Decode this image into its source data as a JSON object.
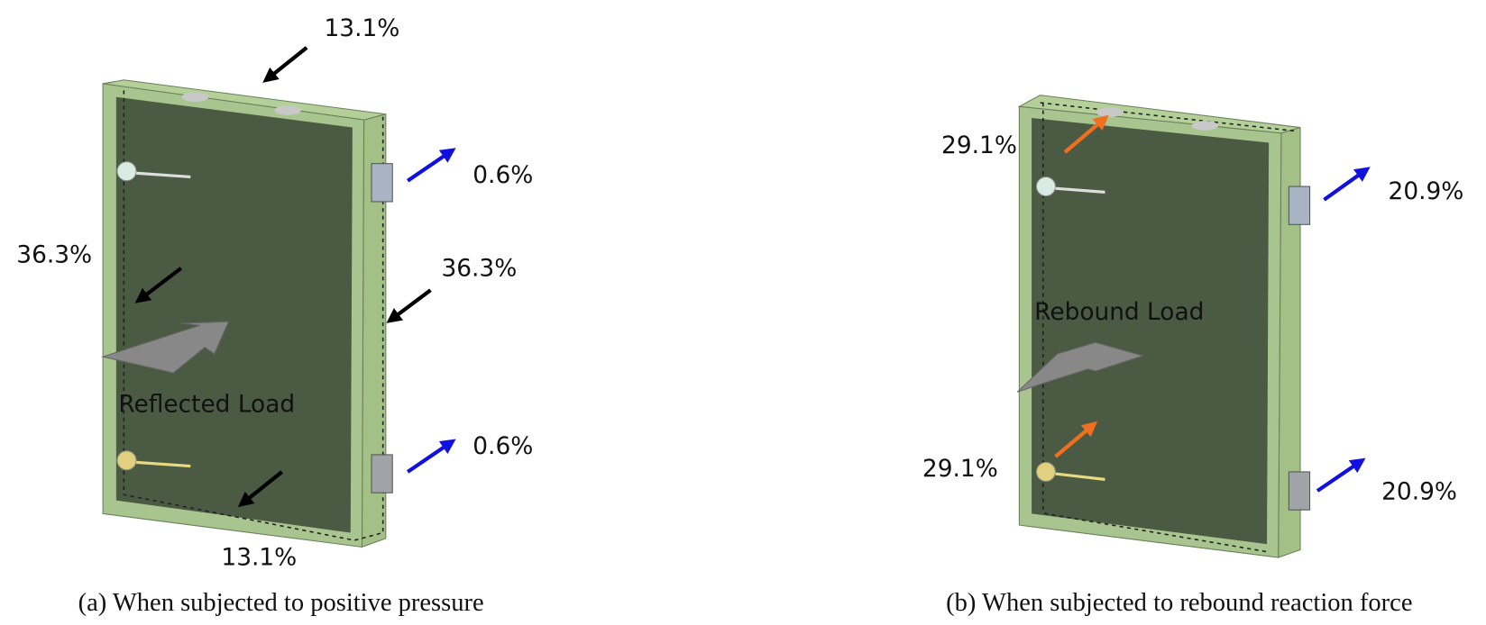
{
  "panels": [
    {
      "caption": "(a) When subjected to positive pressure",
      "load_label": "Reflected Load",
      "labels": [
        "13.1%",
        "0.6%",
        "36.3%",
        "36.3%",
        "0.6%",
        "13.1%"
      ]
    },
    {
      "caption": "(b) When subjected to rebound reaction force",
      "load_label": "Rebound Load",
      "labels": [
        "29.1%",
        "20.9%",
        "29.1%",
        "20.9%"
      ]
    }
  ]
}
